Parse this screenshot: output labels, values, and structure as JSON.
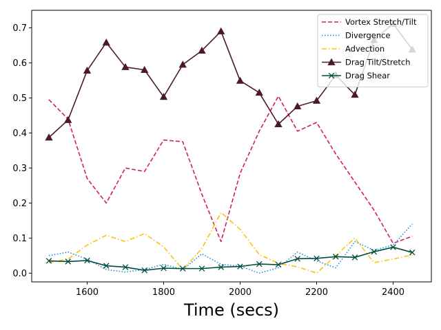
{
  "chart_data": {
    "type": "line",
    "title": "",
    "xlabel": "Time (secs)",
    "ylabel": "",
    "xlim": [
      1455,
      2500
    ],
    "ylim": [
      -0.025,
      0.75
    ],
    "xticks": [
      1600,
      1800,
      2000,
      2200,
      2400
    ],
    "yticks": [
      0.0,
      0.1,
      0.2,
      0.3,
      0.4,
      0.5,
      0.6,
      0.7
    ],
    "ytick_labels": [
      "0.0",
      "0.1",
      "0.2",
      "0.3",
      "0.4",
      "0.5",
      "0.6",
      "0.7"
    ],
    "x": [
      1500,
      1550,
      1600,
      1650,
      1700,
      1750,
      1800,
      1850,
      1900,
      1950,
      2000,
      2050,
      2100,
      2150,
      2200,
      2250,
      2300,
      2350,
      2400,
      2450
    ],
    "legend_position": "upper right",
    "series": [
      {
        "name": "Vortex Stretch/Tilt",
        "color": "#d81b60",
        "dash": "dashed",
        "marker": "none",
        "values": [
          0.495,
          0.44,
          0.27,
          0.2,
          0.3,
          0.29,
          0.38,
          0.375,
          0.225,
          0.09,
          0.285,
          0.405,
          0.505,
          0.405,
          0.43,
          0.34,
          0.26,
          0.18,
          0.085,
          0.105
        ]
      },
      {
        "name": "Divergence",
        "color": "#1e88e5",
        "dash": "dotted",
        "marker": "none",
        "values": [
          0.05,
          0.06,
          0.04,
          0.01,
          0.003,
          0.01,
          0.025,
          0.01,
          0.055,
          0.025,
          0.02,
          0.0,
          0.015,
          0.06,
          0.035,
          0.015,
          0.09,
          0.065,
          0.08,
          0.14
        ]
      },
      {
        "name": "Advection",
        "color": "#ffc107",
        "dash": "dashdot",
        "marker": "none",
        "values": [
          0.03,
          0.04,
          0.08,
          0.108,
          0.09,
          0.113,
          0.075,
          0.01,
          0.07,
          0.173,
          0.125,
          0.053,
          0.028,
          0.018,
          0.0,
          0.05,
          0.1,
          0.03,
          0.04,
          0.052
        ]
      },
      {
        "name": "Drag Tilt/Stretch",
        "color": "#4a1a2a",
        "dash": "solid",
        "marker": "triangle",
        "values": [
          0.387,
          0.437,
          0.578,
          0.658,
          0.588,
          0.58,
          0.503,
          0.595,
          0.635,
          0.69,
          0.549,
          0.515,
          0.425,
          0.476,
          0.492,
          0.565,
          0.509,
          0.665,
          0.712,
          0.638
        ]
      },
      {
        "name": "Drag Shear",
        "color": "#004d40",
        "dash": "solid",
        "marker": "x",
        "values": [
          0.035,
          0.033,
          0.036,
          0.021,
          0.017,
          0.008,
          0.014,
          0.013,
          0.013,
          0.017,
          0.019,
          0.026,
          0.024,
          0.041,
          0.042,
          0.047,
          0.045,
          0.061,
          0.074,
          0.059
        ]
      }
    ]
  }
}
